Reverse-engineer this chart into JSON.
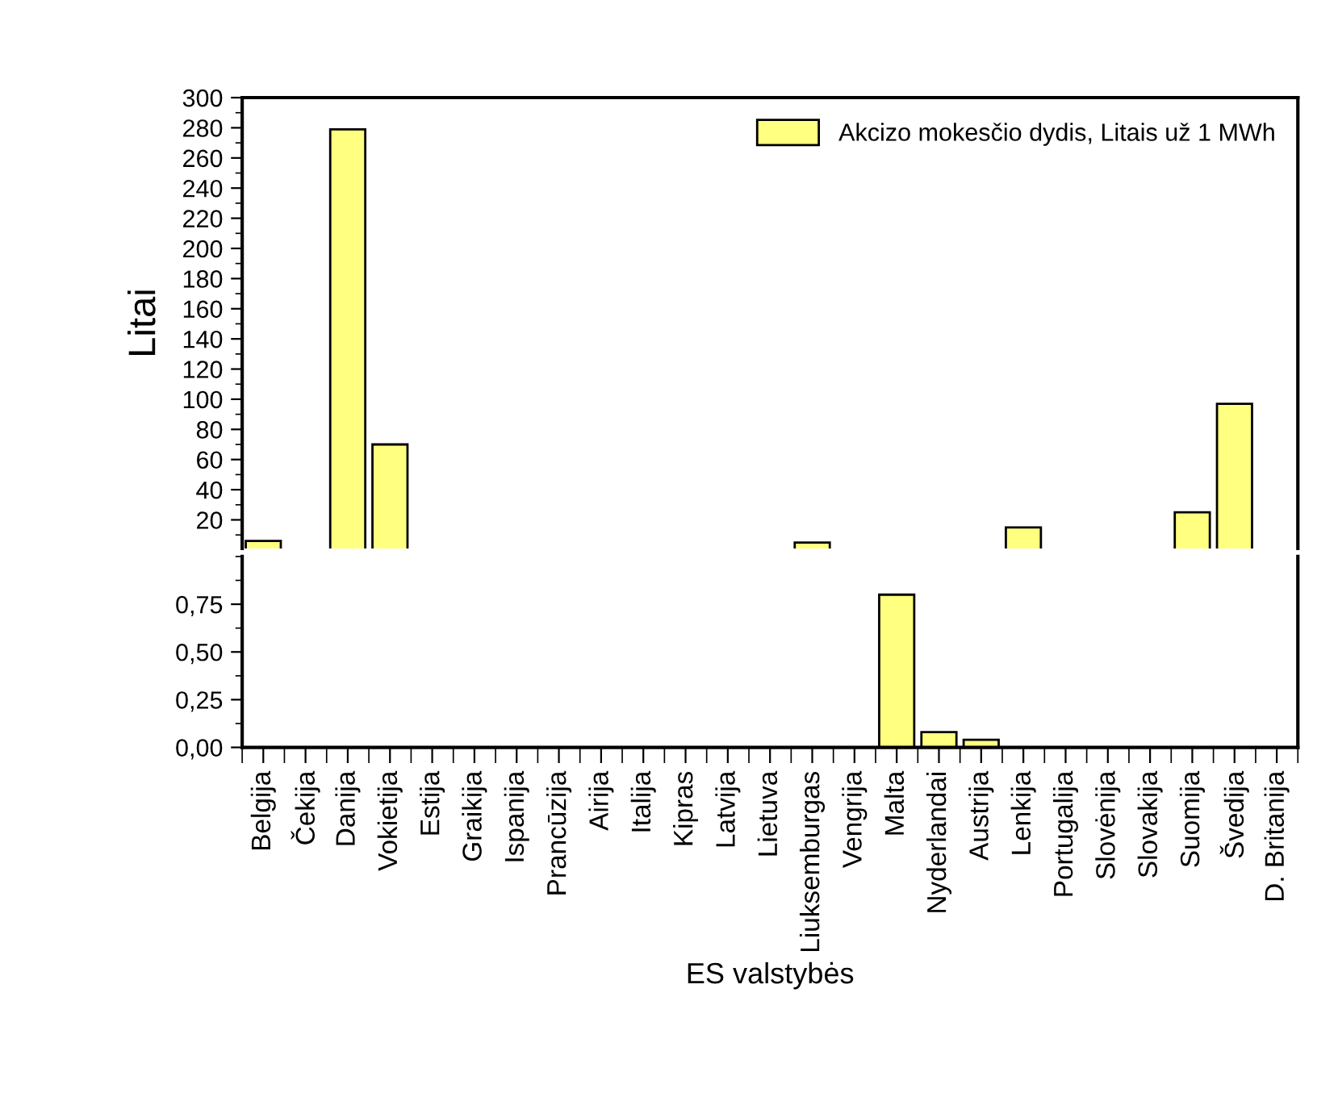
{
  "chart_data": [
    {
      "type": "bar",
      "ylabel": "Litai",
      "series": [
        {
          "name": "Akcizo mokesčio dydis, Litais už 1 MWh",
          "color": "#ffff80",
          "values": [
            6,
            null,
            279,
            70,
            null,
            null,
            null,
            null,
            null,
            null,
            null,
            null,
            null,
            5,
            null,
            null,
            null,
            null,
            15,
            null,
            null,
            null,
            25,
            97,
            null
          ]
        }
      ],
      "ylim": [
        1,
        300
      ],
      "yticks": [
        20,
        40,
        60,
        80,
        100,
        120,
        140,
        160,
        180,
        200,
        220,
        240,
        260,
        280,
        300
      ],
      "tick_labels": "y",
      "legend": "top right",
      "grid": false
    },
    {
      "type": "bar",
      "xlabel": "ES valstybės",
      "categories": [
        "Belgija",
        "Čekija",
        "Danija",
        "Vokietija",
        "Estija",
        "Graikija",
        "Ispanija",
        "Prancūzija",
        "Airija",
        "Italija",
        "Kipras",
        "Latvija",
        "Lietuva",
        "Liuksemburgas",
        "Vengrija",
        "Malta",
        "Nyderlandai",
        "Austrija",
        "Lenkija",
        "Portugalija",
        "Slovėnija",
        "Slovakija",
        "Suomija",
        "Švedija",
        "D. Britanija"
      ],
      "series": [
        {
          "color": "#ffff80",
          "values": [
            null,
            null,
            null,
            null,
            null,
            null,
            null,
            null,
            null,
            null,
            null,
            null,
            null,
            null,
            null,
            0.8,
            0.08,
            0.04,
            null,
            null,
            null,
            null,
            null,
            null,
            null
          ]
        }
      ],
      "ylim": [
        0,
        1
      ],
      "yticks": [
        {
          "value": 0,
          "label": "0,00"
        },
        {
          "value": 0.25,
          "label": "0,25"
        },
        {
          "value": 0.5,
          "label": "0,50"
        },
        {
          "value": 0.75,
          "label": "0,75"
        }
      ],
      "grid": false
    }
  ]
}
